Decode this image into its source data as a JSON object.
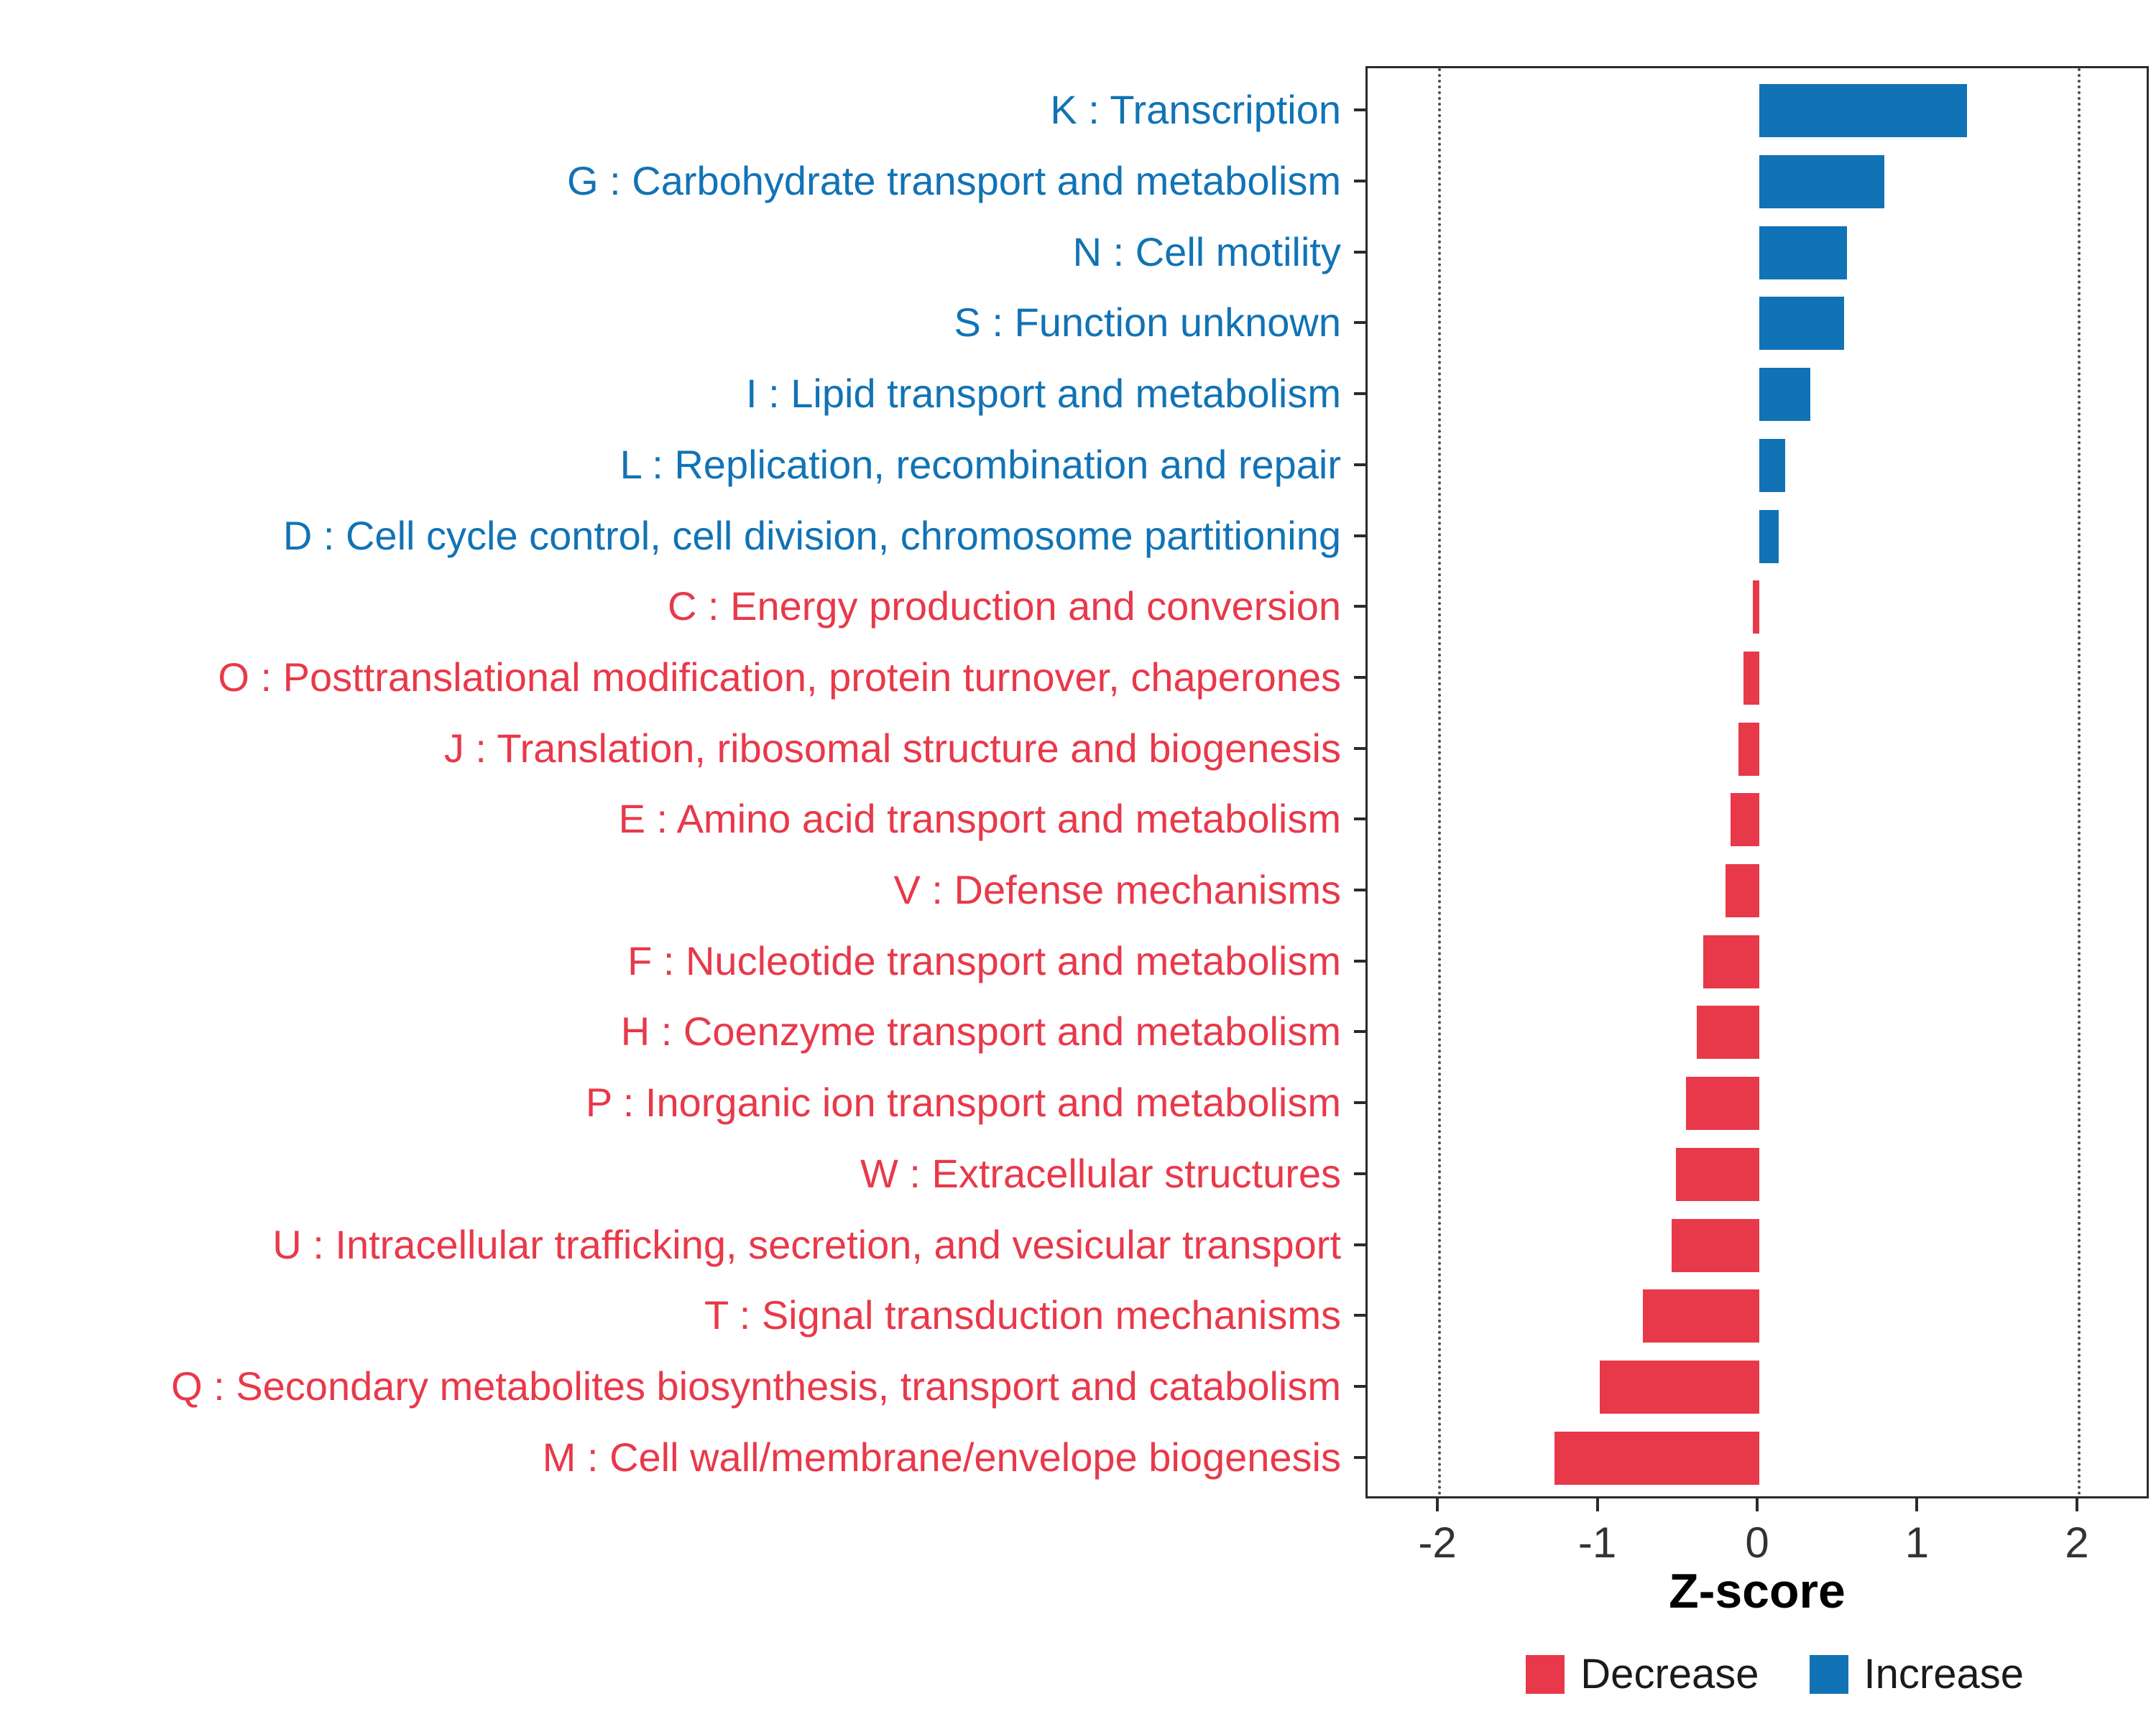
{
  "figure": {
    "background": "#ffffff"
  },
  "colors": {
    "increase": "#1173B5",
    "decrease": "#E8394A",
    "axis_text": "#333333",
    "panel_border": "#2b2b2b",
    "reference_line": "#4d4d4d"
  },
  "chart_data": {
    "type": "bar",
    "orientation": "horizontal",
    "title": "",
    "xlabel": "Z-score",
    "ylabel": "",
    "xlim": [
      -2.45,
      2.45
    ],
    "x_ticks": [
      -2,
      -1,
      0,
      1,
      2
    ],
    "reference_lines": [
      -2,
      2
    ],
    "grid": false,
    "legend_position": "bottom-right",
    "legend": [
      {
        "label": "Decrease",
        "color": "#E8394A"
      },
      {
        "label": "Increase",
        "color": "#1173B5"
      }
    ],
    "rows": [
      {
        "label": "K : Transcription",
        "value": 1.3,
        "group": "Increase"
      },
      {
        "label": "G : Carbohydrate transport and metabolism",
        "value": 0.78,
        "group": "Increase"
      },
      {
        "label": "N : Cell motility",
        "value": 0.55,
        "group": "Increase"
      },
      {
        "label": "S : Function unknown",
        "value": 0.53,
        "group": "Increase"
      },
      {
        "label": "I : Lipid transport and metabolism",
        "value": 0.32,
        "group": "Increase"
      },
      {
        "label": "L : Replication, recombination and repair",
        "value": 0.16,
        "group": "Increase"
      },
      {
        "label": "D : Cell cycle control, cell division, chromosome partitioning",
        "value": 0.12,
        "group": "Increase"
      },
      {
        "label": "C : Energy production and conversion",
        "value": -0.04,
        "group": "Decrease"
      },
      {
        "label": "O : Posttranslational modification, protein turnover, chaperones",
        "value": -0.1,
        "group": "Decrease"
      },
      {
        "label": "J : Translation, ribosomal structure and biogenesis",
        "value": -0.13,
        "group": "Decrease"
      },
      {
        "label": "E : Amino acid transport and metabolism",
        "value": -0.18,
        "group": "Decrease"
      },
      {
        "label": "V : Defense mechanisms",
        "value": -0.21,
        "group": "Decrease"
      },
      {
        "label": "F : Nucleotide transport and metabolism",
        "value": -0.35,
        "group": "Decrease"
      },
      {
        "label": "H : Coenzyme transport and metabolism",
        "value": -0.39,
        "group": "Decrease"
      },
      {
        "label": "P : Inorganic ion transport and metabolism",
        "value": -0.46,
        "group": "Decrease"
      },
      {
        "label": "W : Extracellular structures",
        "value": -0.52,
        "group": "Decrease"
      },
      {
        "label": "U : Intracellular trafficking, secretion, and vesicular transport",
        "value": -0.55,
        "group": "Decrease"
      },
      {
        "label": "T : Signal transduction mechanisms",
        "value": -0.73,
        "group": "Decrease"
      },
      {
        "label": "Q : Secondary metabolites biosynthesis, transport and catabolism",
        "value": -1.0,
        "group": "Decrease"
      },
      {
        "label": "M : Cell wall/membrane/envelope biogenesis",
        "value": -1.28,
        "group": "Decrease"
      }
    ]
  }
}
